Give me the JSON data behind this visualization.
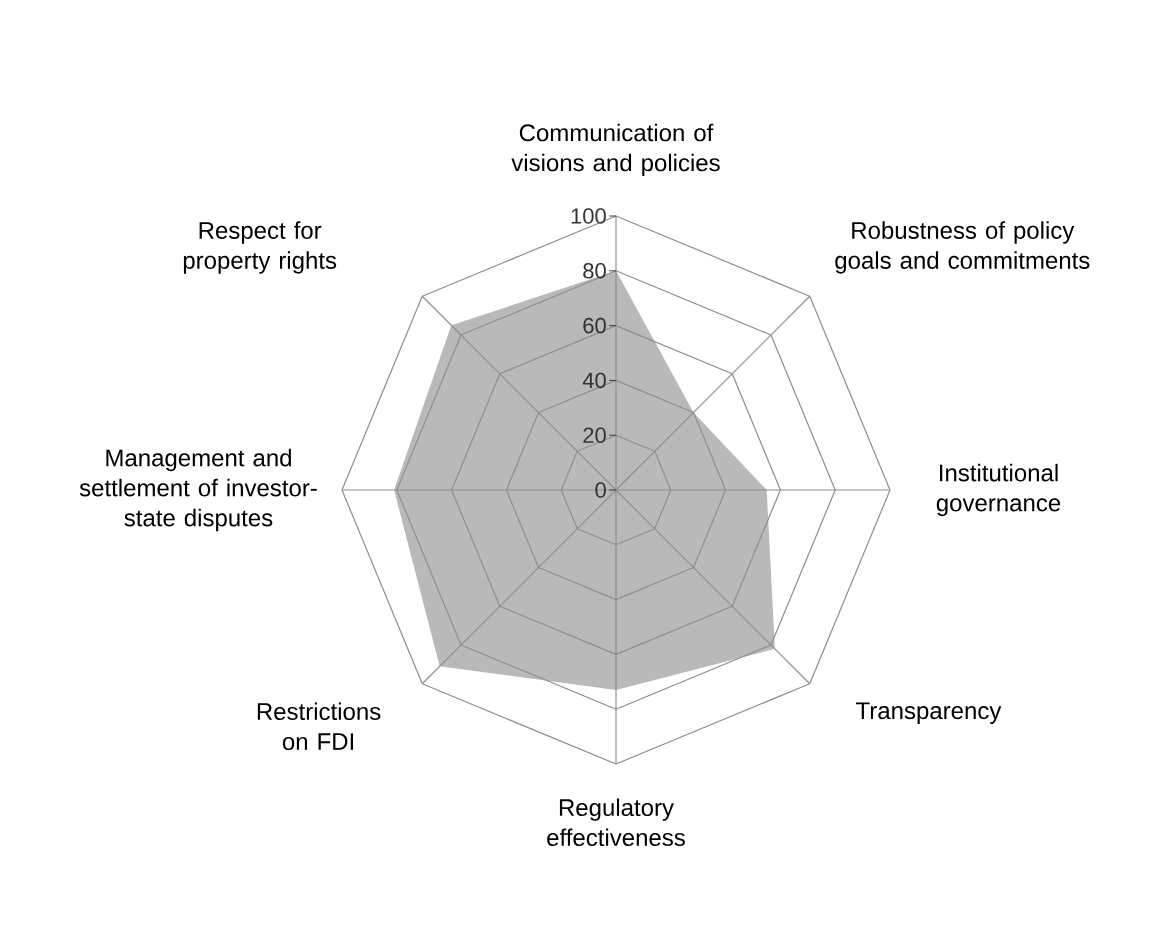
{
  "chart_data": {
    "type": "radar",
    "categories": [
      "Communication of visions and policies",
      "Robustness of policy goals and commitments",
      "Institutional governance",
      "Transparency",
      "Regulatory effectiveness",
      "Restrictions on FDI",
      "Management and settlement of investor-state disputes",
      "Respect for property rights"
    ],
    "series": [
      {
        "color": "#b9b9b9",
        "values": [
          80,
          40,
          55,
          82,
          73,
          91,
          81,
          85
        ]
      }
    ],
    "ylim": [
      0,
      100
    ],
    "yticks": [
      0,
      20,
      40,
      60,
      80,
      100
    ]
  }
}
